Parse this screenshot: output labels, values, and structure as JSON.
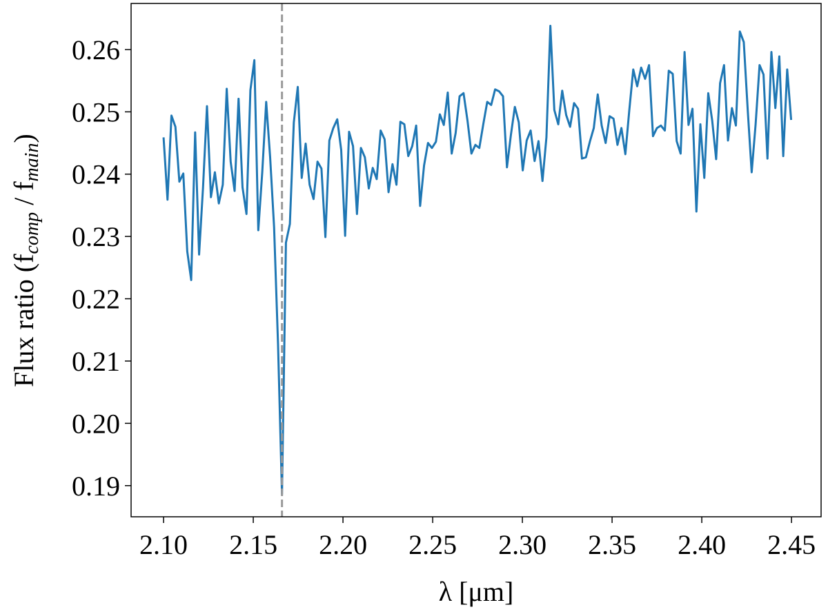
{
  "chart_data": {
    "type": "line",
    "xlabel": "λ [μm]",
    "ylabel": [
      "Flux ratio (f",
      "comp",
      " / f",
      "main",
      ")"
    ],
    "xlim": [
      2.0819,
      2.4665
    ],
    "ylim": [
      0.185,
      0.2674
    ],
    "xticks": [
      {
        "value": 2.1,
        "label": "2.10"
      },
      2.15,
      {
        "value": 2.2,
        "label": "2.20"
      },
      2.25,
      {
        "value": 2.3,
        "label": "2.30"
      },
      2.35,
      {
        "value": 2.4,
        "label": "2.40"
      },
      2.45
    ],
    "yticks": [
      0.19,
      {
        "value": 0.2,
        "label": "0.20"
      },
      0.21,
      0.22,
      0.23,
      0.24,
      0.25,
      0.26
    ],
    "vline": {
      "x": 2.166,
      "color": "#999999",
      "style": "dashed"
    },
    "x": [
      2.1,
      2.1022,
      2.1044,
      2.1066,
      2.1088,
      2.111,
      2.1132,
      2.1154,
      2.1176,
      2.1198,
      2.122,
      2.1242,
      2.1264,
      2.1286,
      2.1308,
      2.133,
      2.1352,
      2.1374,
      2.1396,
      2.1418,
      2.144,
      2.1462,
      2.1484,
      2.1506,
      2.1528,
      2.155,
      2.1572,
      2.1594,
      2.1616,
      2.1638,
      2.166,
      2.1682,
      2.1704,
      2.1726,
      2.1748,
      2.177,
      2.1792,
      2.1814,
      2.1836,
      2.1858,
      2.188,
      2.1902,
      2.1924,
      2.1946,
      2.1968,
      2.199,
      2.2012,
      2.2034,
      2.2056,
      2.2078,
      2.21,
      2.2122,
      2.2144,
      2.2166,
      2.2188,
      2.221,
      2.2232,
      2.2254,
      2.2276,
      2.2298,
      2.232,
      2.2342,
      2.2364,
      2.2386,
      2.2408,
      2.243,
      2.2452,
      2.2474,
      2.2496,
      2.2518,
      2.254,
      2.2562,
      2.2584,
      2.2606,
      2.2628,
      2.265,
      2.2672,
      2.2694,
      2.2716,
      2.2738,
      2.276,
      2.2782,
      2.2804,
      2.2826,
      2.2848,
      2.287,
      2.2892,
      2.2914,
      2.2936,
      2.2958,
      2.298,
      2.3002,
      2.3024,
      2.3046,
      2.3068,
      2.309,
      2.3112,
      2.3134,
      2.3156,
      2.3178,
      2.32,
      2.3222,
      2.3244,
      2.3266,
      2.3288,
      2.331,
      2.3332,
      2.3354,
      2.3376,
      2.3398,
      2.342,
      2.3442,
      2.3464,
      2.3486,
      2.3508,
      2.353,
      2.3552,
      2.3574,
      2.3596,
      2.3618,
      2.364,
      2.3662,
      2.3684,
      2.3706,
      2.3728,
      2.375,
      2.3772,
      2.3794,
      2.3816,
      2.3838,
      2.386,
      2.3882,
      2.3904,
      2.3926,
      2.3948,
      2.397,
      2.3992,
      2.4014,
      2.4036,
      2.4058,
      2.408,
      2.4102,
      2.4124,
      2.4146,
      2.4168,
      2.419,
      2.4212,
      2.4234,
      2.4256,
      2.4278,
      2.43,
      2.4322,
      2.4344,
      2.4366,
      2.4388,
      2.441,
      2.4432,
      2.4454,
      2.4476,
      2.4498
    ],
    "series": [
      {
        "color": "#1f77b4",
        "values": [
          0.2459,
          0.2359,
          0.2494,
          0.2476,
          0.2388,
          0.2401,
          0.2276,
          0.223,
          0.2467,
          0.2271,
          0.2379,
          0.2509,
          0.2363,
          0.2403,
          0.2353,
          0.2383,
          0.2537,
          0.242,
          0.2373,
          0.2521,
          0.2379,
          0.2336,
          0.2535,
          0.2583,
          0.231,
          0.2403,
          0.2516,
          0.2427,
          0.2315,
          0.2127,
          0.1886,
          0.229,
          0.232,
          0.2483,
          0.254,
          0.2394,
          0.2449,
          0.2383,
          0.236,
          0.242,
          0.2409,
          0.2299,
          0.2454,
          0.2474,
          0.2488,
          0.2439,
          0.2301,
          0.2468,
          0.2445,
          0.2336,
          0.2442,
          0.2427,
          0.2377,
          0.241,
          0.2392,
          0.247,
          0.2456,
          0.2371,
          0.2416,
          0.2383,
          0.2484,
          0.248,
          0.2429,
          0.2445,
          0.2478,
          0.2349,
          0.2414,
          0.245,
          0.2442,
          0.2452,
          0.2496,
          0.2479,
          0.2531,
          0.2433,
          0.2466,
          0.2525,
          0.253,
          0.2486,
          0.2433,
          0.2447,
          0.2442,
          0.248,
          0.2516,
          0.2511,
          0.2536,
          0.2533,
          0.2525,
          0.2411,
          0.2463,
          0.2508,
          0.2483,
          0.2406,
          0.2454,
          0.247,
          0.2421,
          0.2453,
          0.2389,
          0.2459,
          0.2638,
          0.2503,
          0.248,
          0.2534,
          0.2495,
          0.2476,
          0.2514,
          0.2505,
          0.2425,
          0.2427,
          0.2452,
          0.2474,
          0.2528,
          0.2478,
          0.245,
          0.2493,
          0.2489,
          0.2447,
          0.2474,
          0.2432,
          0.2503,
          0.2568,
          0.2541,
          0.2571,
          0.2553,
          0.2575,
          0.2461,
          0.2474,
          0.2478,
          0.247,
          0.2566,
          0.2561,
          0.2453,
          0.2433,
          0.2596,
          0.2479,
          0.2505,
          0.234,
          0.248,
          0.2394,
          0.253,
          0.2486,
          0.2424,
          0.2546,
          0.2575,
          0.2454,
          0.2506,
          0.2478,
          0.2629,
          0.2612,
          0.2503,
          0.2403,
          0.248,
          0.2575,
          0.256,
          0.2425,
          0.2596,
          0.2506,
          0.2589,
          0.2429,
          0.2568,
          0.2487
        ]
      }
    ]
  }
}
